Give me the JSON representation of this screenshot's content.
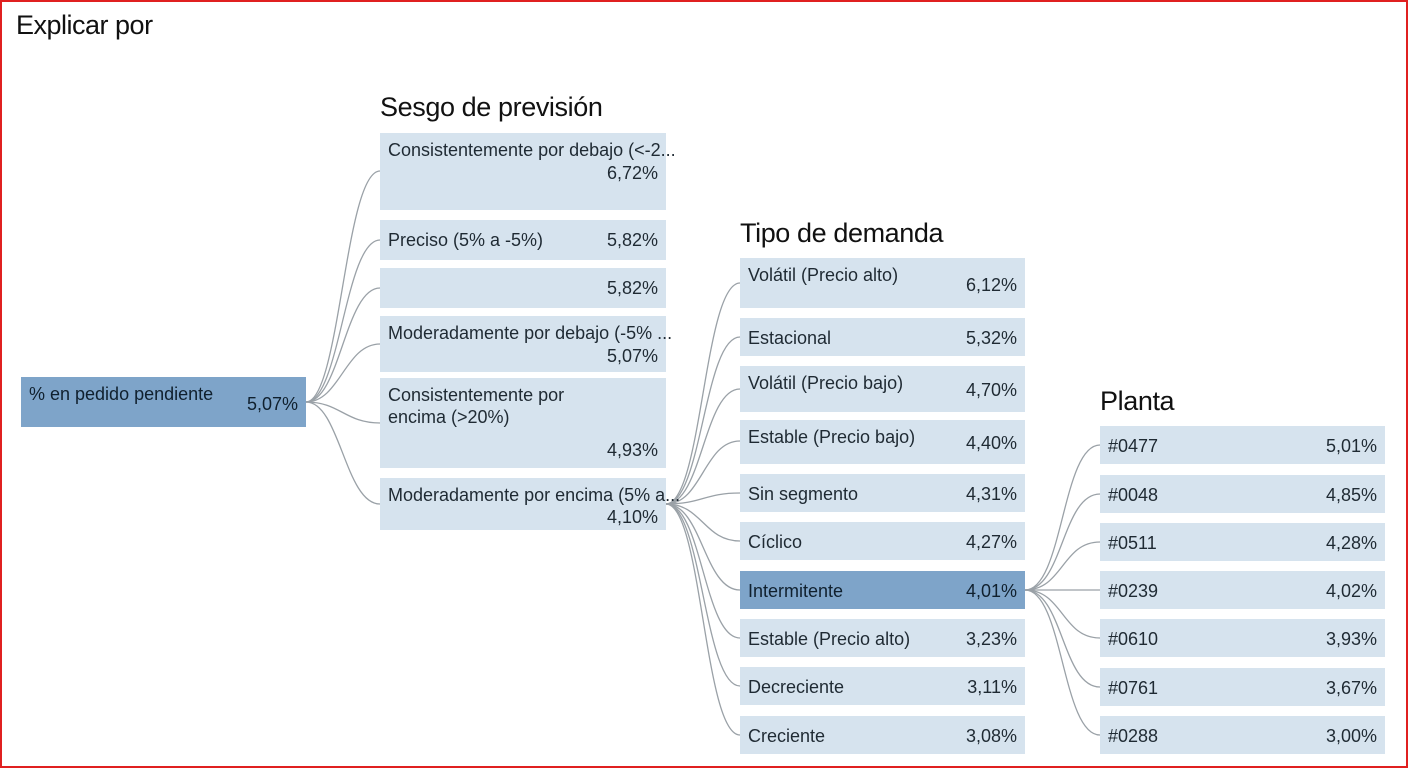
{
  "title": "Explicar por",
  "root": {
    "label": "% en pedido pendiente",
    "value": "5,07%"
  },
  "level1": {
    "header": "Sesgo de previsión",
    "items": [
      {
        "label": "Consistentemente por debajo (<-2...",
        "value": "6,72%"
      },
      {
        "label": "Preciso (5% a -5%)",
        "value": "5,82%"
      },
      {
        "label": "",
        "value": "5,82%"
      },
      {
        "label": "Moderadamente por debajo (-5% ...",
        "value": "5,07%"
      },
      {
        "label": "Consistentemente por encima (>20%)",
        "value": "4,93%"
      },
      {
        "label": "Moderadamente por encima (5% a...",
        "value": "4,10%"
      }
    ]
  },
  "level2": {
    "header": "Tipo de demanda",
    "items": [
      {
        "label": "Volátil (Precio alto)",
        "value": "6,12%"
      },
      {
        "label": "Estacional",
        "value": "5,32%"
      },
      {
        "label": "Volátil (Precio bajo)",
        "value": "4,70%"
      },
      {
        "label": "Estable (Precio bajo)",
        "value": "4,40%"
      },
      {
        "label": "Sin segmento",
        "value": "4,31%"
      },
      {
        "label": "Cíclico",
        "value": "4,27%"
      },
      {
        "label": "Intermitente",
        "value": "4,01%"
      },
      {
        "label": "Estable (Precio alto)",
        "value": "3,23%"
      },
      {
        "label": "Decreciente",
        "value": "3,11%"
      },
      {
        "label": "Creciente",
        "value": "3,08%"
      }
    ]
  },
  "level3": {
    "header": "Planta",
    "items": [
      {
        "label": "#0477",
        "value": "5,01%"
      },
      {
        "label": "#0048",
        "value": "4,85%"
      },
      {
        "label": "#0511",
        "value": "4,28%"
      },
      {
        "label": "#0239",
        "value": "4,02%"
      },
      {
        "label": "#0610",
        "value": "3,93%"
      },
      {
        "label": "#0761",
        "value": "3,67%"
      },
      {
        "label": "#0288",
        "value": "3,00%"
      }
    ]
  },
  "colors": {
    "node": "#d6e3ee",
    "selected": "#7ea4c9",
    "link": "#9aa1a7",
    "frame": "#e02020"
  }
}
